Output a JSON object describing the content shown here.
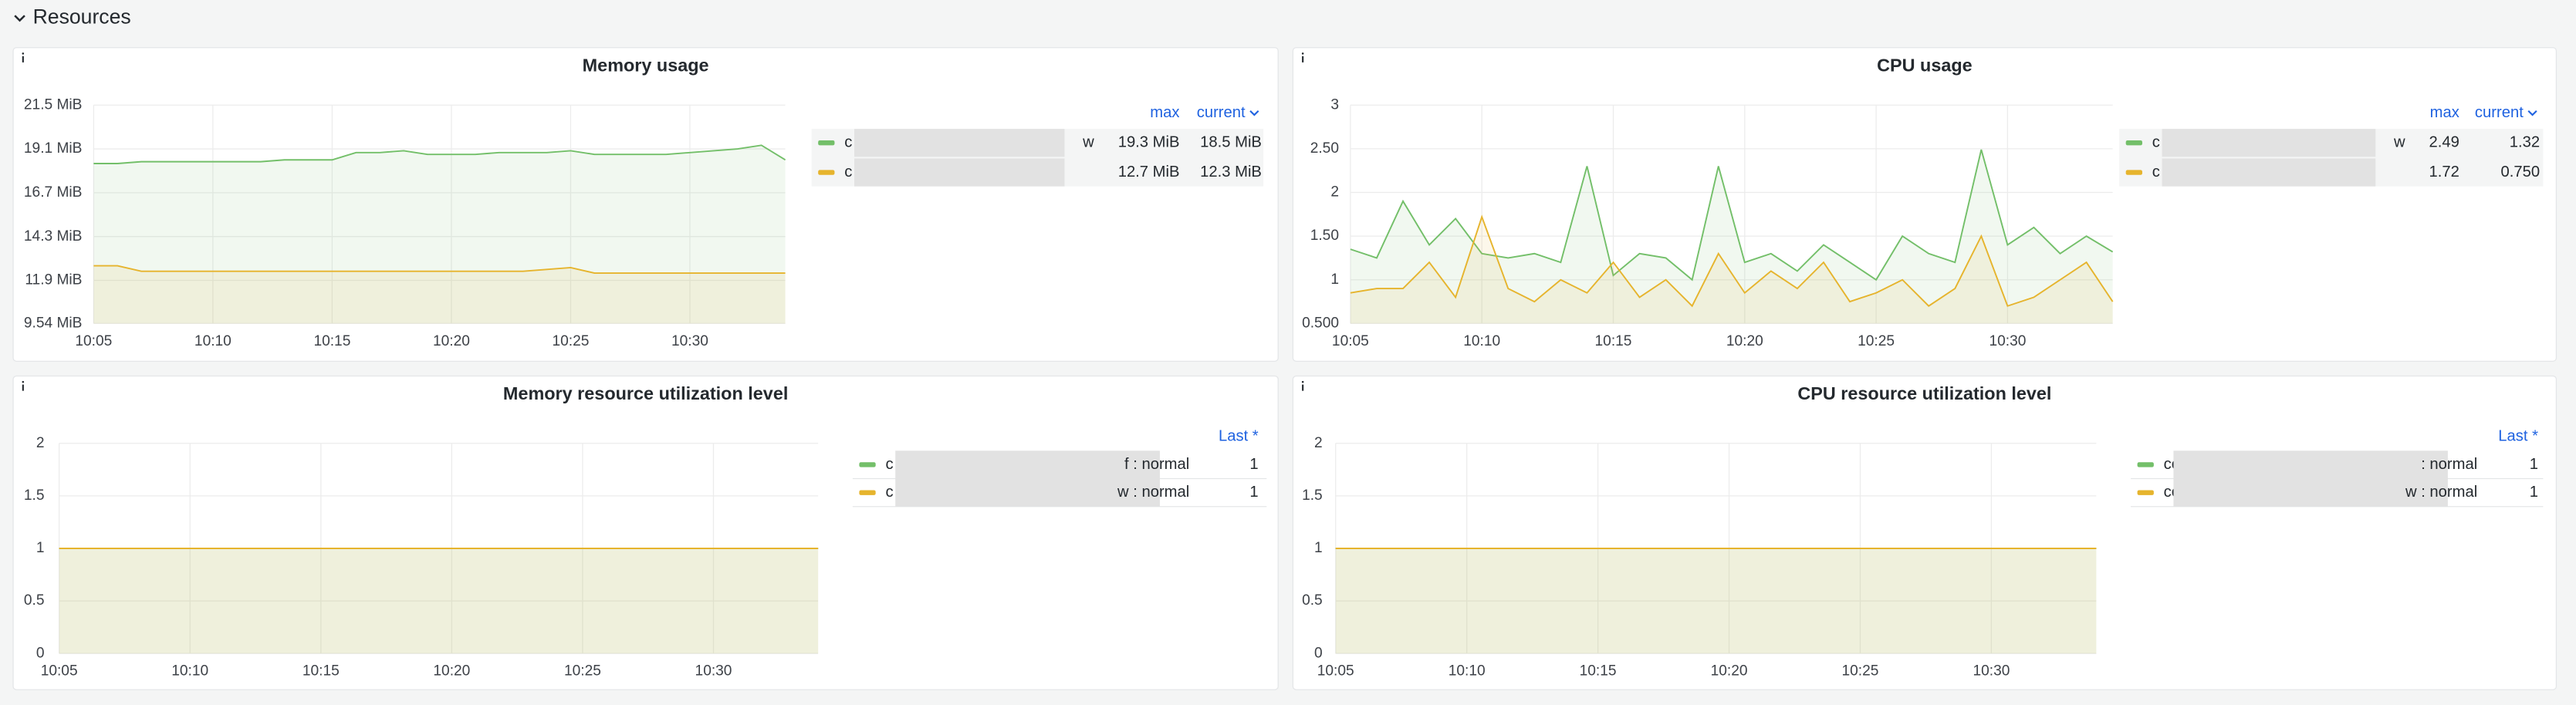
{
  "section_title": "Resources",
  "chart_data": [
    {
      "type": "line",
      "title": "Memory usage",
      "x": [
        "10:05",
        "10:06",
        "10:07",
        "10:08",
        "10:09",
        "10:10",
        "10:11",
        "10:12",
        "10:13",
        "10:14",
        "10:15",
        "10:16",
        "10:17",
        "10:18",
        "10:19",
        "10:20",
        "10:21",
        "10:22",
        "10:23",
        "10:24",
        "10:25",
        "10:26",
        "10:27",
        "10:28",
        "10:29",
        "10:30",
        "10:31",
        "10:32",
        "10:33",
        "10:34"
      ],
      "xlim": [
        "10:05",
        "10:34"
      ],
      "xticks": [
        "10:05",
        "10:10",
        "10:15",
        "10:20",
        "10:25",
        "10:30"
      ],
      "ylim": [
        9.54,
        21.5
      ],
      "yticks": [
        {
          "value": 9.54,
          "label": "9.54 MiB"
        },
        {
          "value": 11.9,
          "label": "11.9 MiB"
        },
        {
          "value": 14.3,
          "label": "14.3 MiB"
        },
        {
          "value": 16.7,
          "label": "16.7 MiB"
        },
        {
          "value": 19.1,
          "label": "19.1 MiB"
        },
        {
          "value": 21.5,
          "label": "21.5 MiB"
        }
      ],
      "grid": true,
      "legend_columns": [
        "max",
        "current"
      ],
      "series": [
        {
          "name": "c",
          "name_end": "w",
          "color": "#73bf69",
          "values": [
            18.3,
            18.3,
            18.4,
            18.4,
            18.4,
            18.4,
            18.4,
            18.4,
            18.5,
            18.5,
            18.5,
            18.9,
            18.9,
            19.0,
            18.8,
            18.8,
            18.8,
            18.9,
            18.9,
            18.9,
            19.0,
            18.8,
            18.8,
            18.8,
            18.8,
            18.9,
            19.0,
            19.1,
            19.3,
            18.5
          ],
          "stats": [
            {
              "value": 19.3,
              "label": "19.3 MiB"
            },
            {
              "value": 18.5,
              "label": "18.5 MiB"
            }
          ]
        },
        {
          "name": "c",
          "color": "#e6b42d",
          "values": [
            12.7,
            12.7,
            12.4,
            12.4,
            12.4,
            12.4,
            12.4,
            12.4,
            12.4,
            12.4,
            12.4,
            12.4,
            12.4,
            12.4,
            12.4,
            12.4,
            12.4,
            12.4,
            12.4,
            12.5,
            12.6,
            12.3,
            12.3,
            12.3,
            12.3,
            12.3,
            12.3,
            12.3,
            12.3,
            12.3
          ],
          "stats": [
            {
              "value": 12.7,
              "label": "12.7 MiB"
            },
            {
              "value": 12.3,
              "label": "12.3 MiB"
            }
          ]
        }
      ]
    },
    {
      "type": "line",
      "title": "CPU usage",
      "x": [
        "10:05",
        "10:06",
        "10:07",
        "10:08",
        "10:09",
        "10:10",
        "10:11",
        "10:12",
        "10:13",
        "10:14",
        "10:15",
        "10:16",
        "10:17",
        "10:18",
        "10:19",
        "10:20",
        "10:21",
        "10:22",
        "10:23",
        "10:24",
        "10:25",
        "10:26",
        "10:27",
        "10:28",
        "10:29",
        "10:30",
        "10:31",
        "10:32",
        "10:33",
        "10:34"
      ],
      "xlim": [
        "10:05",
        "10:34"
      ],
      "xticks": [
        "10:05",
        "10:10",
        "10:15",
        "10:20",
        "10:25",
        "10:30"
      ],
      "ylim": [
        0.5,
        3
      ],
      "yticks": [
        {
          "value": 0.5,
          "label": "0.500"
        },
        1,
        {
          "value": 1.5,
          "label": "1.50"
        },
        2,
        {
          "value": 2.5,
          "label": "2.50"
        },
        3
      ],
      "grid": true,
      "legend_columns": [
        "max",
        "current"
      ],
      "series": [
        {
          "name": "c",
          "name_end": "w",
          "color": "#73bf69",
          "values": [
            1.35,
            1.25,
            1.9,
            1.4,
            1.7,
            1.3,
            1.25,
            1.3,
            1.2,
            2.3,
            1.05,
            1.3,
            1.25,
            1.0,
            2.3,
            1.2,
            1.3,
            1.1,
            1.4,
            1.2,
            1.0,
            1.5,
            1.3,
            1.2,
            2.49,
            1.4,
            1.6,
            1.3,
            1.5,
            1.32
          ],
          "stats": [
            2.49,
            1.32
          ]
        },
        {
          "name": "c",
          "color": "#e6b42d",
          "values": [
            0.85,
            0.9,
            0.9,
            1.2,
            0.8,
            1.72,
            0.9,
            0.75,
            1.0,
            0.85,
            1.2,
            0.8,
            1.0,
            0.7,
            1.3,
            0.85,
            1.1,
            0.9,
            1.2,
            0.75,
            0.85,
            1.0,
            0.7,
            0.9,
            1.5,
            0.7,
            0.8,
            1.0,
            1.2,
            0.75
          ],
          "stats": [
            1.72,
            {
              "value": 0.75,
              "label": "0.750"
            }
          ]
        }
      ]
    },
    {
      "type": "line",
      "title": "Memory resource utilization level",
      "x": [
        "10:05",
        "10:06",
        "10:07",
        "10:08",
        "10:09",
        "10:10",
        "10:11",
        "10:12",
        "10:13",
        "10:14",
        "10:15",
        "10:16",
        "10:17",
        "10:18",
        "10:19",
        "10:20",
        "10:21",
        "10:22",
        "10:23",
        "10:24",
        "10:25",
        "10:26",
        "10:27",
        "10:28",
        "10:29",
        "10:30",
        "10:31",
        "10:32",
        "10:33",
        "10:34"
      ],
      "xlim": [
        "10:05",
        "10:34"
      ],
      "xticks": [
        "10:05",
        "10:10",
        "10:15",
        "10:20",
        "10:25",
        "10:30"
      ],
      "ylim": [
        0,
        2
      ],
      "yticks": [
        0,
        0.5,
        1,
        1.5,
        2
      ],
      "grid": true,
      "legend_columns": [
        "Last *"
      ],
      "series": [
        {
          "name": "c",
          "name_end": "f : normal",
          "color": "#73bf69",
          "values": [
            1,
            1,
            1,
            1,
            1,
            1,
            1,
            1,
            1,
            1,
            1,
            1,
            1,
            1,
            1,
            1,
            1,
            1,
            1,
            1,
            1,
            1,
            1,
            1,
            1,
            1,
            1,
            1,
            1,
            1
          ],
          "stats": [
            1
          ]
        },
        {
          "name": "c",
          "name_end": "w : normal",
          "color": "#e6b42d",
          "values": [
            1,
            1,
            1,
            1,
            1,
            1,
            1,
            1,
            1,
            1,
            1,
            1,
            1,
            1,
            1,
            1,
            1,
            1,
            1,
            1,
            1,
            1,
            1,
            1,
            1,
            1,
            1,
            1,
            1,
            1
          ],
          "stats": [
            1
          ]
        }
      ]
    },
    {
      "type": "line",
      "title": "CPU resource utilization level",
      "x": [
        "10:05",
        "10:06",
        "10:07",
        "10:08",
        "10:09",
        "10:10",
        "10:11",
        "10:12",
        "10:13",
        "10:14",
        "10:15",
        "10:16",
        "10:17",
        "10:18",
        "10:19",
        "10:20",
        "10:21",
        "10:22",
        "10:23",
        "10:24",
        "10:25",
        "10:26",
        "10:27",
        "10:28",
        "10:29",
        "10:30",
        "10:31",
        "10:32",
        "10:33",
        "10:34"
      ],
      "xlim": [
        "10:05",
        "10:34"
      ],
      "xticks": [
        "10:05",
        "10:10",
        "10:15",
        "10:20",
        "10:25",
        "10:30"
      ],
      "ylim": [
        0,
        2
      ],
      "yticks": [
        0,
        0.5,
        1,
        1.5,
        2
      ],
      "grid": true,
      "legend_columns": [
        "Last *"
      ],
      "series": [
        {
          "name": "co",
          "name_end": ": normal",
          "color": "#73bf69",
          "values": [
            1,
            1,
            1,
            1,
            1,
            1,
            1,
            1,
            1,
            1,
            1,
            1,
            1,
            1,
            1,
            1,
            1,
            1,
            1,
            1,
            1,
            1,
            1,
            1,
            1,
            1,
            1,
            1,
            1,
            1
          ],
          "stats": [
            1
          ]
        },
        {
          "name": "co",
          "name_end": "w : normal",
          "color": "#e6b42d",
          "values": [
            1,
            1,
            1,
            1,
            1,
            1,
            1,
            1,
            1,
            1,
            1,
            1,
            1,
            1,
            1,
            1,
            1,
            1,
            1,
            1,
            1,
            1,
            1,
            1,
            1,
            1,
            1,
            1,
            1,
            1
          ],
          "stats": [
            1
          ]
        }
      ]
    }
  ]
}
